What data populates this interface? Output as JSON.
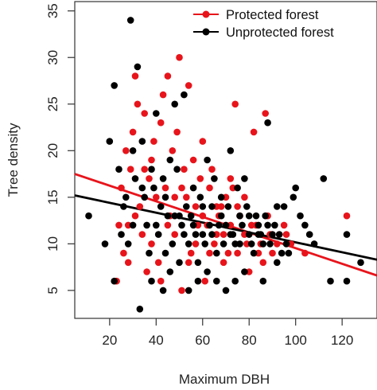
{
  "chart_data": {
    "type": "scatter",
    "xlabel": "Maximum DBH",
    "ylabel": "Tree density",
    "xlim": [
      5,
      135
    ],
    "ylim": [
      2,
      36
    ],
    "x_ticks": [
      20,
      40,
      60,
      80,
      100,
      120
    ],
    "y_ticks": [
      5,
      10,
      15,
      20,
      25,
      30,
      35
    ],
    "x_tick_labels": [
      "20",
      "40",
      "60",
      "80",
      "100",
      "120"
    ],
    "y_tick_labels": [
      "5",
      "10",
      "15",
      "20",
      "25",
      "30",
      "35"
    ],
    "grid": false,
    "legend_position": "top-right",
    "series": [
      {
        "name": "Protected forest",
        "color": "#e8141b",
        "points": [
          [
            23,
            6
          ],
          [
            26,
            9
          ],
          [
            28,
            12
          ],
          [
            30,
            22
          ],
          [
            31,
            28
          ],
          [
            32,
            25
          ],
          [
            34,
            11
          ],
          [
            35,
            24
          ],
          [
            36,
            7
          ],
          [
            38,
            19
          ],
          [
            40,
            15
          ],
          [
            41,
            8
          ],
          [
            43,
            26
          ],
          [
            45,
            28
          ],
          [
            46,
            13
          ],
          [
            48,
            11
          ],
          [
            50,
            30
          ],
          [
            51,
            5
          ],
          [
            52,
            18
          ],
          [
            54,
            27
          ],
          [
            55,
            9
          ],
          [
            57,
            14
          ],
          [
            58,
            12
          ],
          [
            60,
            21
          ],
          [
            61,
            6
          ],
          [
            63,
            16
          ],
          [
            65,
            10
          ],
          [
            67,
            13
          ],
          [
            69,
            8
          ],
          [
            70,
            15
          ],
          [
            72,
            12
          ],
          [
            74,
            25
          ],
          [
            75,
            9
          ],
          [
            78,
            11
          ],
          [
            80,
            7
          ],
          [
            82,
            22
          ],
          [
            85,
            10
          ],
          [
            87,
            24
          ],
          [
            88,
            13
          ],
          [
            90,
            9
          ],
          [
            95,
            12
          ],
          [
            98,
            10
          ],
          [
            104,
            9
          ],
          [
            122,
            13
          ],
          [
            25,
            16
          ],
          [
            27,
            20
          ],
          [
            29,
            18
          ],
          [
            33,
            14
          ],
          [
            37,
            17
          ],
          [
            39,
            21
          ],
          [
            42,
            23
          ],
          [
            44,
            16
          ],
          [
            47,
            20
          ],
          [
            49,
            22
          ],
          [
            53,
            15
          ],
          [
            56,
            19
          ],
          [
            59,
            17
          ],
          [
            62,
            12
          ],
          [
            64,
            18
          ],
          [
            66,
            11
          ],
          [
            68,
            14
          ],
          [
            71,
            9
          ],
          [
            73,
            16
          ],
          [
            76,
            13
          ],
          [
            79,
            10
          ],
          [
            83,
            12
          ],
          [
            86,
            8
          ],
          [
            92,
            10
          ],
          [
            96,
            11
          ],
          [
            24,
            12
          ],
          [
            28,
            8
          ],
          [
            31,
            13
          ],
          [
            35,
            18
          ],
          [
            38,
            10
          ],
          [
            42,
            6
          ],
          [
            45,
            12
          ],
          [
            48,
            15
          ],
          [
            51,
            16
          ],
          [
            54,
            8
          ],
          [
            57,
            10
          ],
          [
            60,
            13
          ],
          [
            63,
            9
          ],
          [
            66,
            14
          ],
          [
            69,
            11
          ],
          [
            72,
            17
          ],
          [
            75,
            14
          ],
          [
            78,
            15
          ],
          [
            81,
            12
          ],
          [
            84,
            9
          ],
          [
            89,
            11
          ]
        ]
      },
      {
        "name": "Unprotected forest",
        "color": "#000000",
        "points": [
          [
            11,
            13
          ],
          [
            18,
            10
          ],
          [
            20,
            21
          ],
          [
            22,
            27
          ],
          [
            24,
            18
          ],
          [
            26,
            14
          ],
          [
            28,
            10
          ],
          [
            29,
            34
          ],
          [
            30,
            20
          ],
          [
            32,
            29
          ],
          [
            33,
            3
          ],
          [
            34,
            21
          ],
          [
            36,
            12
          ],
          [
            38,
            18
          ],
          [
            40,
            24
          ],
          [
            42,
            14
          ],
          [
            44,
            9
          ],
          [
            46,
            19
          ],
          [
            48,
            25
          ],
          [
            50,
            13
          ],
          [
            52,
            26
          ],
          [
            54,
            10
          ],
          [
            56,
            16
          ],
          [
            58,
            8
          ],
          [
            60,
            11
          ],
          [
            62,
            19
          ],
          [
            64,
            14
          ],
          [
            66,
            9
          ],
          [
            68,
            15
          ],
          [
            70,
            12
          ],
          [
            72,
            20
          ],
          [
            74,
            10
          ],
          [
            76,
            13
          ],
          [
            78,
            17
          ],
          [
            80,
            11
          ],
          [
            82,
            9
          ],
          [
            84,
            12
          ],
          [
            86,
            10
          ],
          [
            88,
            23
          ],
          [
            90,
            11
          ],
          [
            92,
            14
          ],
          [
            94,
            9
          ],
          [
            96,
            10
          ],
          [
            100,
            16
          ],
          [
            104,
            12
          ],
          [
            106,
            11
          ],
          [
            112,
            17
          ],
          [
            115,
            6
          ],
          [
            122,
            11
          ],
          [
            122,
            6
          ],
          [
            128,
            8
          ],
          [
            22,
            6
          ],
          [
            25,
            11
          ],
          [
            27,
            15
          ],
          [
            31,
            17
          ],
          [
            35,
            15
          ],
          [
            37,
            9
          ],
          [
            39,
            16
          ],
          [
            41,
            11
          ],
          [
            43,
            17
          ],
          [
            45,
            13
          ],
          [
            47,
            10
          ],
          [
            49,
            18
          ],
          [
            51,
            12
          ],
          [
            53,
            14
          ],
          [
            55,
            13
          ],
          [
            57,
            11
          ],
          [
            59,
            15
          ],
          [
            61,
            10
          ],
          [
            63,
            12
          ],
          [
            65,
            17
          ],
          [
            67,
            12
          ],
          [
            69,
            10
          ],
          [
            71,
            14
          ],
          [
            73,
            11
          ],
          [
            75,
            16
          ],
          [
            77,
            12
          ],
          [
            79,
            14
          ],
          [
            81,
            10
          ],
          [
            83,
            13
          ],
          [
            85,
            11
          ],
          [
            87,
            13
          ],
          [
            89,
            10
          ],
          [
            91,
            12
          ],
          [
            93,
            11
          ],
          [
            97,
            9
          ],
          [
            102,
            13
          ],
          [
            108,
            10
          ],
          [
            30,
            12
          ],
          [
            34,
            16
          ],
          [
            40,
            12
          ],
          [
            44,
            15
          ],
          [
            48,
            13
          ],
          [
            52,
            11
          ],
          [
            56,
            12
          ],
          [
            60,
            14
          ],
          [
            64,
            11
          ],
          [
            68,
            13
          ],
          [
            72,
            11
          ],
          [
            76,
            10
          ],
          [
            80,
            13
          ],
          [
            84,
            11
          ],
          [
            88,
            12
          ],
          [
            46,
            7
          ],
          [
            50,
            8
          ],
          [
            58,
            6
          ],
          [
            62,
            7
          ],
          [
            66,
            6
          ],
          [
            70,
            5
          ],
          [
            74,
            6
          ],
          [
            78,
            7
          ],
          [
            86,
            6
          ],
          [
            92,
            8
          ],
          [
            54,
            5
          ],
          [
            43,
            5
          ],
          [
            38,
            6
          ],
          [
            95,
            14
          ],
          [
            99,
            15
          ]
        ]
      }
    ],
    "trendlines": [
      {
        "name": "Protected forest",
        "color": "#e8141b",
        "x": [
          5,
          135
        ],
        "y": [
          17.5,
          6.6
        ]
      },
      {
        "name": "Unprotected forest",
        "color": "#000000",
        "x": [
          5,
          135
        ],
        "y": [
          15.2,
          8.3
        ]
      }
    ]
  }
}
